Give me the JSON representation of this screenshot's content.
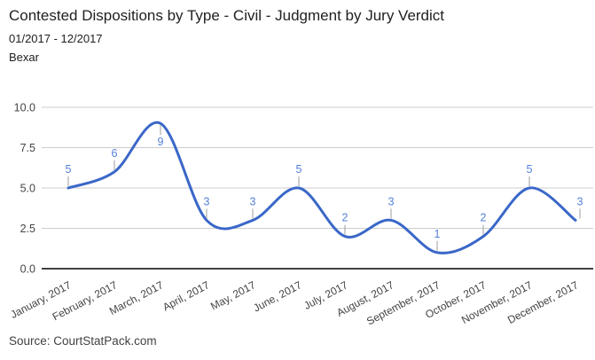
{
  "header": {
    "title": "Contested Dispositions by Type - Civil - Judgment by Jury Verdict",
    "subtitle": "01/2017 - 12/2017",
    "region": "Bexar"
  },
  "footer": {
    "source": "Source: CourtStatPack.com"
  },
  "chart_data": {
    "type": "line",
    "title": "Contested Dispositions by Type - Civil - Judgment by Jury Verdict",
    "subtitle": "01/2017 - 12/2017",
    "region": "Bexar",
    "categories": [
      "January, 2017",
      "February, 2017",
      "March, 2017",
      "April, 2017",
      "May, 2017",
      "June, 2017",
      "July, 2017",
      "August, 2017",
      "September, 2017",
      "October, 2017",
      "November, 2017",
      "December, 2017"
    ],
    "values": [
      5,
      6,
      9,
      3,
      3,
      5,
      2,
      3,
      1,
      2,
      5,
      3
    ],
    "annotations": [
      "5",
      "6",
      "9",
      "3",
      "3",
      "5",
      "2",
      "3",
      "1",
      "2",
      "5",
      "3"
    ],
    "annotation_below_indexes": [
      2
    ],
    "xlabel": "",
    "ylabel": "",
    "ylim": [
      0,
      10
    ],
    "yticks": [
      0,
      2.5,
      5,
      7.5,
      10
    ],
    "ytick_labels": [
      "0.0",
      "2.5",
      "5.0",
      "7.5",
      "10.0"
    ],
    "grid": "horizontal-only",
    "legend": "none",
    "smooth_curve": true,
    "colors": {
      "line": "#3A67C8",
      "annotation_text": "#5580D8",
      "annotation_stem": "#9e9e9e",
      "gridline": "#cccccc",
      "baseline": "#424242",
      "tick_label": "#444444",
      "category_label": "#444444"
    }
  }
}
